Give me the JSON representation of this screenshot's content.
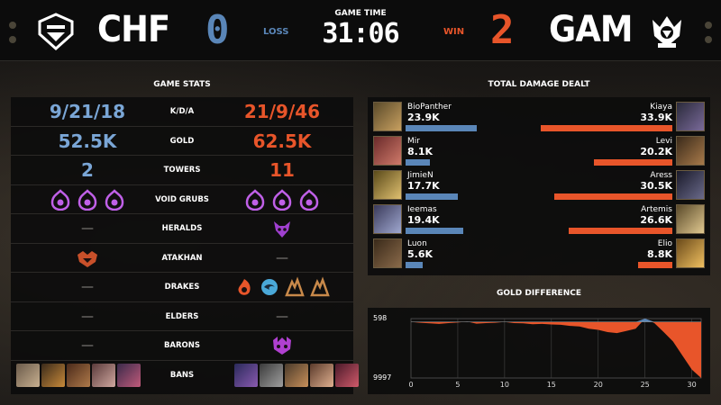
{
  "header": {
    "left_team": {
      "tag": "CHF",
      "score": "0",
      "result": "LOSS"
    },
    "right_team": {
      "tag": "GAM",
      "score": "2",
      "result": "WIN"
    },
    "game_time_label": "GAME TIME",
    "game_time": "31:06"
  },
  "colors": {
    "blue": "#5a86b8",
    "orange": "#e8552a",
    "grub_purple": "#c060e8"
  },
  "game_stats": {
    "title": "GAME STATS",
    "rows": [
      {
        "label": "K/D/A",
        "left": "9/21/18",
        "right": "21/9/46"
      },
      {
        "label": "GOLD",
        "left": "52.5K",
        "right": "62.5K"
      },
      {
        "label": "TOWERS",
        "left": "2",
        "right": "11"
      },
      {
        "label": "VOID GRUBS",
        "left_icons": [
          "void-grub-icon",
          "void-grub-icon",
          "void-grub-icon"
        ],
        "right_icons": [
          "void-grub-icon",
          "void-grub-icon",
          "void-grub-icon"
        ]
      },
      {
        "label": "HERALDS",
        "left": "—",
        "right_icons": [
          "herald-icon"
        ]
      },
      {
        "label": "ATAKHAN",
        "left_icons": [
          "atakhan-icon"
        ],
        "right": "—"
      },
      {
        "label": "DRAKES",
        "left": "—",
        "right_icons": [
          "infernal-drake-icon",
          "ocean-drake-icon",
          "mountain-drake-icon",
          "mountain-drake-icon"
        ]
      },
      {
        "label": "ELDERS",
        "left": "—",
        "right": "—"
      },
      {
        "label": "BARONS",
        "left": "—",
        "right_icons": [
          "baron-icon"
        ]
      },
      {
        "label": "BANS",
        "left_icons": [
          "champion-ban-portrait",
          "champion-ban-portrait",
          "champion-ban-portrait",
          "champion-ban-portrait",
          "champion-ban-portrait"
        ],
        "right_icons": [
          "champion-ban-portrait",
          "champion-ban-portrait",
          "champion-ban-portrait",
          "champion-ban-portrait",
          "champion-ban-portrait"
        ]
      }
    ]
  },
  "damage": {
    "title": "TOTAL DAMAGE DEALT",
    "rows": [
      {
        "left_name": "BioPanther",
        "left_value": "23.9K",
        "left_k": 23.9,
        "right_name": "Kiaya",
        "right_value": "33.9K",
        "right_k": 33.9
      },
      {
        "left_name": "Mir",
        "left_value": "8.1K",
        "left_k": 8.1,
        "right_name": "Levi",
        "right_value": "20.2K",
        "right_k": 20.2
      },
      {
        "left_name": "JimieN",
        "left_value": "17.7K",
        "left_k": 17.7,
        "right_name": "Aress",
        "right_value": "30.5K",
        "right_k": 30.5
      },
      {
        "left_name": "Ieemas",
        "left_value": "19.4K",
        "left_k": 19.4,
        "right_name": "Artemis",
        "right_value": "26.6K",
        "right_k": 26.6
      },
      {
        "left_name": "Luon",
        "left_value": "5.6K",
        "left_k": 5.6,
        "right_name": "Elio",
        "right_value": "8.8K",
        "right_k": 8.8
      }
    ]
  },
  "gold_difference": {
    "title": "GOLD DIFFERENCE",
    "top_label": "598",
    "bottom_label": "9997",
    "x_ticks": [
      "0",
      "5",
      "10",
      "15",
      "20",
      "25",
      "30"
    ]
  },
  "chart_data": {
    "type": "area",
    "title": "GOLD DIFFERENCE",
    "x": [
      0,
      1,
      2,
      3,
      4,
      5,
      6,
      7,
      8,
      9,
      10,
      11,
      12,
      13,
      14,
      15,
      16,
      17,
      18,
      19,
      20,
      21,
      22,
      23,
      24,
      25,
      26,
      27,
      28,
      29,
      30,
      31
    ],
    "y": [
      0,
      -150,
      -250,
      -350,
      -200,
      -100,
      50,
      -300,
      -200,
      -150,
      0,
      -200,
      -250,
      -400,
      -350,
      -450,
      -500,
      -700,
      -800,
      -1200,
      -1400,
      -1800,
      -2000,
      -1600,
      -1200,
      598,
      -200,
      -1800,
      -3500,
      -6000,
      -8500,
      -9997
    ],
    "ylim": [
      -9997,
      598
    ],
    "xlim": [
      0,
      31
    ]
  }
}
